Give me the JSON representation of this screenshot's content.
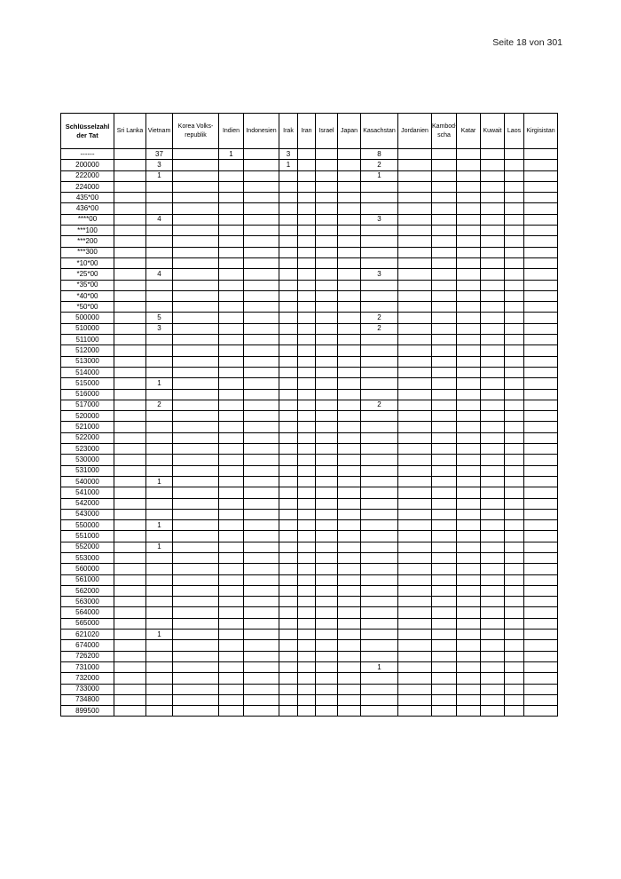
{
  "page": {
    "page_indicator": "Seite 18 von 301"
  },
  "table": {
    "key_header": "Schlüsselzahl\nder Tat",
    "columns": [
      "Sri Lanka",
      "Vietnam",
      "Korea Volks-\nrepublik",
      "Indien",
      "Indonesien",
      "Irak",
      "Iran",
      "Israel",
      "Japan",
      "Kasachstan",
      "Jordanien",
      "Kambod-\nscha",
      "Katar",
      "Kuwait",
      "Laos",
      "Kirgisistan"
    ],
    "rows": [
      {
        "key": "------",
        "values": [
          "",
          "37",
          "",
          "1",
          "",
          "3",
          "",
          "",
          "",
          "8",
          "",
          "",
          "",
          "",
          "",
          ""
        ]
      },
      {
        "key": "200000",
        "values": [
          "",
          "3",
          "",
          "",
          "",
          "1",
          "",
          "",
          "",
          "2",
          "",
          "",
          "",
          "",
          "",
          ""
        ]
      },
      {
        "key": "222000",
        "values": [
          "",
          "1",
          "",
          "",
          "",
          "",
          "",
          "",
          "",
          "1",
          "",
          "",
          "",
          "",
          "",
          ""
        ]
      },
      {
        "key": "224000",
        "values": [
          "",
          "",
          "",
          "",
          "",
          "",
          "",
          "",
          "",
          "",
          "",
          "",
          "",
          "",
          "",
          ""
        ]
      },
      {
        "key": "435*00",
        "values": [
          "",
          "",
          "",
          "",
          "",
          "",
          "",
          "",
          "",
          "",
          "",
          "",
          "",
          "",
          "",
          ""
        ]
      },
      {
        "key": "436*00",
        "values": [
          "",
          "",
          "",
          "",
          "",
          "",
          "",
          "",
          "",
          "",
          "",
          "",
          "",
          "",
          "",
          ""
        ]
      },
      {
        "key": "****00",
        "values": [
          "",
          "4",
          "",
          "",
          "",
          "",
          "",
          "",
          "",
          "3",
          "",
          "",
          "",
          "",
          "",
          ""
        ]
      },
      {
        "key": "***100",
        "values": [
          "",
          "",
          "",
          "",
          "",
          "",
          "",
          "",
          "",
          "",
          "",
          "",
          "",
          "",
          "",
          ""
        ]
      },
      {
        "key": "***200",
        "values": [
          "",
          "",
          "",
          "",
          "",
          "",
          "",
          "",
          "",
          "",
          "",
          "",
          "",
          "",
          "",
          ""
        ]
      },
      {
        "key": "***300",
        "values": [
          "",
          "",
          "",
          "",
          "",
          "",
          "",
          "",
          "",
          "",
          "",
          "",
          "",
          "",
          "",
          ""
        ]
      },
      {
        "key": "*10*00",
        "values": [
          "",
          "",
          "",
          "",
          "",
          "",
          "",
          "",
          "",
          "",
          "",
          "",
          "",
          "",
          "",
          ""
        ]
      },
      {
        "key": "*25*00",
        "values": [
          "",
          "4",
          "",
          "",
          "",
          "",
          "",
          "",
          "",
          "3",
          "",
          "",
          "",
          "",
          "",
          ""
        ]
      },
      {
        "key": "*35*00",
        "values": [
          "",
          "",
          "",
          "",
          "",
          "",
          "",
          "",
          "",
          "",
          "",
          "",
          "",
          "",
          "",
          ""
        ]
      },
      {
        "key": "*40*00",
        "values": [
          "",
          "",
          "",
          "",
          "",
          "",
          "",
          "",
          "",
          "",
          "",
          "",
          "",
          "",
          "",
          ""
        ]
      },
      {
        "key": "*50*00",
        "values": [
          "",
          "",
          "",
          "",
          "",
          "",
          "",
          "",
          "",
          "",
          "",
          "",
          "",
          "",
          "",
          ""
        ]
      },
      {
        "key": "500000",
        "values": [
          "",
          "5",
          "",
          "",
          "",
          "",
          "",
          "",
          "",
          "2",
          "",
          "",
          "",
          "",
          "",
          ""
        ]
      },
      {
        "key": "510000",
        "values": [
          "",
          "3",
          "",
          "",
          "",
          "",
          "",
          "",
          "",
          "2",
          "",
          "",
          "",
          "",
          "",
          ""
        ]
      },
      {
        "key": "511000",
        "values": [
          "",
          "",
          "",
          "",
          "",
          "",
          "",
          "",
          "",
          "",
          "",
          "",
          "",
          "",
          "",
          ""
        ]
      },
      {
        "key": "512000",
        "values": [
          "",
          "",
          "",
          "",
          "",
          "",
          "",
          "",
          "",
          "",
          "",
          "",
          "",
          "",
          "",
          ""
        ]
      },
      {
        "key": "513000",
        "values": [
          "",
          "",
          "",
          "",
          "",
          "",
          "",
          "",
          "",
          "",
          "",
          "",
          "",
          "",
          "",
          ""
        ]
      },
      {
        "key": "514000",
        "values": [
          "",
          "",
          "",
          "",
          "",
          "",
          "",
          "",
          "",
          "",
          "",
          "",
          "",
          "",
          "",
          ""
        ]
      },
      {
        "key": "515000",
        "values": [
          "",
          "1",
          "",
          "",
          "",
          "",
          "",
          "",
          "",
          "",
          "",
          "",
          "",
          "",
          "",
          ""
        ]
      },
      {
        "key": "516000",
        "values": [
          "",
          "",
          "",
          "",
          "",
          "",
          "",
          "",
          "",
          "",
          "",
          "",
          "",
          "",
          "",
          ""
        ]
      },
      {
        "key": "517000",
        "values": [
          "",
          "2",
          "",
          "",
          "",
          "",
          "",
          "",
          "",
          "2",
          "",
          "",
          "",
          "",
          "",
          ""
        ]
      },
      {
        "key": "520000",
        "values": [
          "",
          "",
          "",
          "",
          "",
          "",
          "",
          "",
          "",
          "",
          "",
          "",
          "",
          "",
          "",
          ""
        ]
      },
      {
        "key": "521000",
        "values": [
          "",
          "",
          "",
          "",
          "",
          "",
          "",
          "",
          "",
          "",
          "",
          "",
          "",
          "",
          "",
          ""
        ]
      },
      {
        "key": "522000",
        "values": [
          "",
          "",
          "",
          "",
          "",
          "",
          "",
          "",
          "",
          "",
          "",
          "",
          "",
          "",
          "",
          ""
        ]
      },
      {
        "key": "523000",
        "values": [
          "",
          "",
          "",
          "",
          "",
          "",
          "",
          "",
          "",
          "",
          "",
          "",
          "",
          "",
          "",
          ""
        ]
      },
      {
        "key": "530000",
        "values": [
          "",
          "",
          "",
          "",
          "",
          "",
          "",
          "",
          "",
          "",
          "",
          "",
          "",
          "",
          "",
          ""
        ]
      },
      {
        "key": "531000",
        "values": [
          "",
          "",
          "",
          "",
          "",
          "",
          "",
          "",
          "",
          "",
          "",
          "",
          "",
          "",
          "",
          ""
        ]
      },
      {
        "key": "540000",
        "values": [
          "",
          "1",
          "",
          "",
          "",
          "",
          "",
          "",
          "",
          "",
          "",
          "",
          "",
          "",
          "",
          ""
        ]
      },
      {
        "key": "541000",
        "values": [
          "",
          "",
          "",
          "",
          "",
          "",
          "",
          "",
          "",
          "",
          "",
          "",
          "",
          "",
          "",
          ""
        ]
      },
      {
        "key": "542000",
        "values": [
          "",
          "",
          "",
          "",
          "",
          "",
          "",
          "",
          "",
          "",
          "",
          "",
          "",
          "",
          "",
          ""
        ]
      },
      {
        "key": "543000",
        "values": [
          "",
          "",
          "",
          "",
          "",
          "",
          "",
          "",
          "",
          "",
          "",
          "",
          "",
          "",
          "",
          ""
        ]
      },
      {
        "key": "550000",
        "values": [
          "",
          "1",
          "",
          "",
          "",
          "",
          "",
          "",
          "",
          "",
          "",
          "",
          "",
          "",
          "",
          ""
        ]
      },
      {
        "key": "551000",
        "values": [
          "",
          "",
          "",
          "",
          "",
          "",
          "",
          "",
          "",
          "",
          "",
          "",
          "",
          "",
          "",
          ""
        ]
      },
      {
        "key": "552000",
        "values": [
          "",
          "1",
          "",
          "",
          "",
          "",
          "",
          "",
          "",
          "",
          "",
          "",
          "",
          "",
          "",
          ""
        ]
      },
      {
        "key": "553000",
        "values": [
          "",
          "",
          "",
          "",
          "",
          "",
          "",
          "",
          "",
          "",
          "",
          "",
          "",
          "",
          "",
          ""
        ]
      },
      {
        "key": "560000",
        "values": [
          "",
          "",
          "",
          "",
          "",
          "",
          "",
          "",
          "",
          "",
          "",
          "",
          "",
          "",
          "",
          ""
        ]
      },
      {
        "key": "561000",
        "values": [
          "",
          "",
          "",
          "",
          "",
          "",
          "",
          "",
          "",
          "",
          "",
          "",
          "",
          "",
          "",
          ""
        ]
      },
      {
        "key": "562000",
        "values": [
          "",
          "",
          "",
          "",
          "",
          "",
          "",
          "",
          "",
          "",
          "",
          "",
          "",
          "",
          "",
          ""
        ]
      },
      {
        "key": "563000",
        "values": [
          "",
          "",
          "",
          "",
          "",
          "",
          "",
          "",
          "",
          "",
          "",
          "",
          "",
          "",
          "",
          ""
        ]
      },
      {
        "key": "564000",
        "values": [
          "",
          "",
          "",
          "",
          "",
          "",
          "",
          "",
          "",
          "",
          "",
          "",
          "",
          "",
          "",
          ""
        ]
      },
      {
        "key": "565000",
        "values": [
          "",
          "",
          "",
          "",
          "",
          "",
          "",
          "",
          "",
          "",
          "",
          "",
          "",
          "",
          "",
          ""
        ]
      },
      {
        "key": "621020",
        "values": [
          "",
          "1",
          "",
          "",
          "",
          "",
          "",
          "",
          "",
          "",
          "",
          "",
          "",
          "",
          "",
          ""
        ]
      },
      {
        "key": "674000",
        "values": [
          "",
          "",
          "",
          "",
          "",
          "",
          "",
          "",
          "",
          "",
          "",
          "",
          "",
          "",
          "",
          ""
        ]
      },
      {
        "key": "726200",
        "values": [
          "",
          "",
          "",
          "",
          "",
          "",
          "",
          "",
          "",
          "",
          "",
          "",
          "",
          "",
          "",
          ""
        ]
      },
      {
        "key": "731000",
        "values": [
          "",
          "",
          "",
          "",
          "",
          "",
          "",
          "",
          "",
          "1",
          "",
          "",
          "",
          "",
          "",
          ""
        ]
      },
      {
        "key": "732000",
        "values": [
          "",
          "",
          "",
          "",
          "",
          "",
          "",
          "",
          "",
          "",
          "",
          "",
          "",
          "",
          "",
          ""
        ]
      },
      {
        "key": "733000",
        "values": [
          "",
          "",
          "",
          "",
          "",
          "",
          "",
          "",
          "",
          "",
          "",
          "",
          "",
          "",
          "",
          ""
        ]
      },
      {
        "key": "734800",
        "values": [
          "",
          "",
          "",
          "",
          "",
          "",
          "",
          "",
          "",
          "",
          "",
          "",
          "",
          "",
          "",
          ""
        ]
      },
      {
        "key": "899500",
        "values": [
          "",
          "",
          "",
          "",
          "",
          "",
          "",
          "",
          "",
          "",
          "",
          "",
          "",
          "",
          "",
          ""
        ]
      }
    ]
  }
}
